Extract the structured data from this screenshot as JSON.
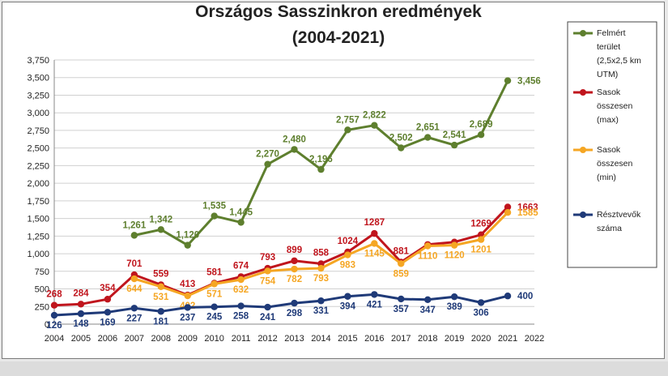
{
  "chart_data": {
    "type": "line",
    "title_lines": [
      "Országos Sasszinkron eredmények",
      "(2004-2021)"
    ],
    "categories": [
      "2004",
      "2005",
      "2006",
      "2007",
      "2008",
      "2009",
      "2010",
      "2011",
      "2012",
      "2013",
      "2014",
      "2015",
      "2016",
      "2017",
      "2018",
      "2019",
      "2020",
      "2021",
      "2022"
    ],
    "ylim": [
      0,
      3750
    ],
    "yticks": [
      "0",
      "250",
      "500",
      "750",
      "1,000",
      "1,250",
      "1,500",
      "1,750",
      "2,000",
      "2,250",
      "2,500",
      "2,750",
      "3,000",
      "3,250",
      "3,500",
      "3,750"
    ],
    "grid": true,
    "legend_position": "right",
    "series": [
      {
        "name": "Felmért terület (2,5x2,5 km UTM)",
        "legend_lines": [
          "Felmért",
          "terület",
          "(2,5x2,5 km",
          "UTM)"
        ],
        "color": "#5e7f2e",
        "values": [
          null,
          null,
          null,
          1261,
          1342,
          1120,
          1535,
          1445,
          2270,
          2480,
          2196,
          2757,
          2822,
          2502,
          2651,
          2541,
          2689,
          3456,
          null
        ],
        "labels": [
          null,
          null,
          null,
          "1,261",
          "1,342",
          "1,120",
          "1,535",
          "1,445",
          "2,270",
          "2,480",
          "2,196",
          "2,757",
          "2,822",
          "2,502",
          "2,651",
          "2,541",
          "2,689",
          "3,456",
          null
        ]
      },
      {
        "name": "Sasok összesen (max)",
        "legend_lines": [
          "Sasok",
          "összesen",
          "(max)"
        ],
        "color": "#c0151d",
        "values": [
          268,
          284,
          354,
          701,
          559,
          413,
          581,
          674,
          793,
          899,
          858,
          1024,
          1287,
          881,
          1130,
          1165,
          1269,
          1663,
          null
        ],
        "labels": [
          "268",
          "284",
          "354",
          "701",
          "559",
          "413",
          "581",
          "674",
          "793",
          "899",
          "858",
          "1024",
          "1287",
          "881",
          "",
          "",
          "1269",
          "1663",
          null
        ]
      },
      {
        "name": "Sasok összesen (min)",
        "legend_lines": [
          "Sasok",
          "összesen",
          "(min)"
        ],
        "color": "#f5a623",
        "values": [
          null,
          null,
          null,
          644,
          531,
          402,
          571,
          632,
          754,
          782,
          793,
          983,
          1145,
          859,
          1110,
          1120,
          1201,
          1585,
          null
        ],
        "labels": [
          null,
          null,
          null,
          "644",
          "531",
          "402",
          "571",
          "632",
          "754",
          "782",
          "793",
          "983",
          "1145",
          "859",
          "1110",
          "1120",
          "1201",
          "1585",
          null
        ]
      },
      {
        "name": "Résztvevők száma",
        "legend_lines": [
          "Résztvevők",
          "száma"
        ],
        "color": "#1f3a78",
        "values": [
          126,
          148,
          169,
          227,
          181,
          237,
          245,
          258,
          241,
          298,
          331,
          394,
          421,
          357,
          347,
          389,
          306,
          400,
          null
        ],
        "labels": [
          "126",
          "148",
          "169",
          "227",
          "181",
          "237",
          "245",
          "258",
          "241",
          "298",
          "331",
          "394",
          "421",
          "357",
          "347",
          "389",
          "306",
          "400",
          null
        ]
      }
    ]
  }
}
